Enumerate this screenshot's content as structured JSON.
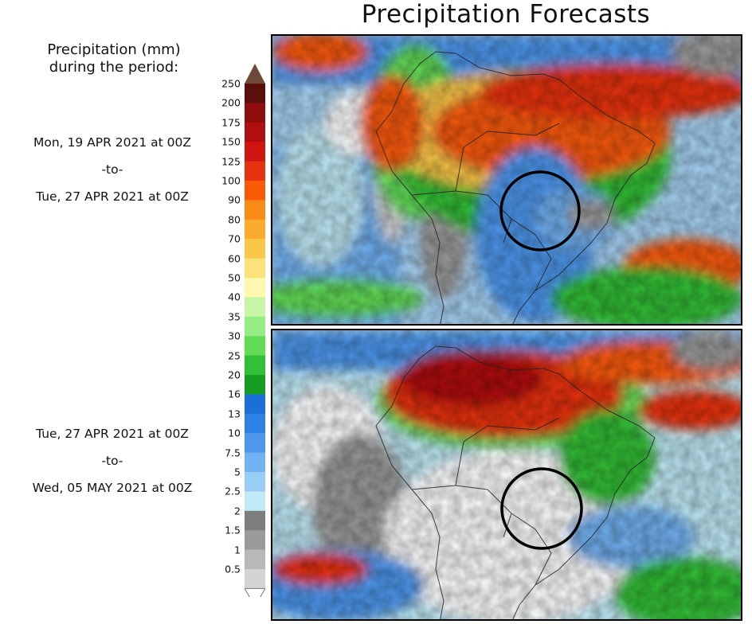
{
  "title": "Precipitation Forecasts",
  "legend": {
    "title_line1": "Precipitation (mm)",
    "title_line2": "during the period:",
    "levels": [
      "250",
      "200",
      "175",
      "150",
      "125",
      "100",
      "90",
      "80",
      "70",
      "60",
      "50",
      "40",
      "35",
      "30",
      "25",
      "20",
      "16",
      "13",
      "10",
      "7.5",
      "5",
      "2.5",
      "2",
      "1.5",
      "1",
      "0.5"
    ],
    "colors": [
      "#5c0f0a",
      "#8e0d0d",
      "#b10f0f",
      "#d01511",
      "#e8320f",
      "#fa5a08",
      "#f88b15",
      "#f9ac2e",
      "#fbc748",
      "#fde27a",
      "#fff7ae",
      "#c9f5a6",
      "#94ec84",
      "#62dc56",
      "#33bf36",
      "#179e22",
      "#1c6fd6",
      "#2e82e6",
      "#4d98ee",
      "#72b2f2",
      "#98cdf5",
      "#c0eaf7",
      "#7d7d7d",
      "#9b9b9b",
      "#b8b8b8",
      "#d4d4d4"
    ],
    "top_cap_color": "#6b4a3a",
    "bottom_cap_color": "#ffffff"
  },
  "periods": [
    {
      "start": "Mon, 19 APR 2021 at 00Z",
      "to": "-to-",
      "end": "Tue, 27 APR 2021 at 00Z"
    },
    {
      "start": "Tue, 27 APR 2021 at 00Z",
      "to": "-to-",
      "end": "Wed, 05 MAY 2021 at 00Z"
    }
  ],
  "maps": [
    {
      "region": "South America",
      "highlight": "circle-marker"
    },
    {
      "region": "South America",
      "highlight": "circle-marker"
    }
  ]
}
